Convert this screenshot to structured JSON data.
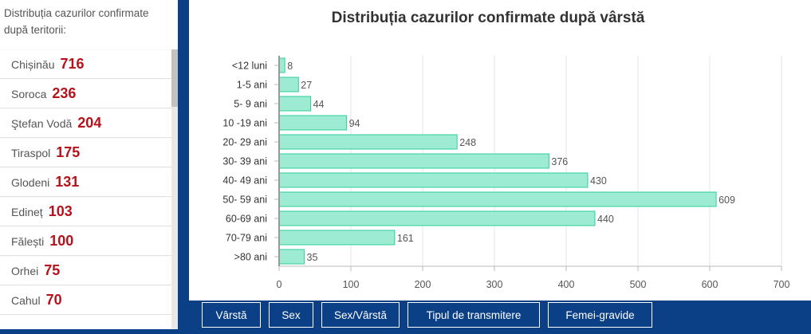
{
  "sidebar": {
    "title": "Distribuția cazurilor confirmate după teritorii:",
    "items": [
      {
        "name": "Chișinău",
        "count": "716"
      },
      {
        "name": "Soroca",
        "count": "236"
      },
      {
        "name": "Ştefan Vodă",
        "count": "204"
      },
      {
        "name": "Tiraspol",
        "count": "175"
      },
      {
        "name": "Glodeni",
        "count": "131"
      },
      {
        "name": "Edineț",
        "count": "103"
      },
      {
        "name": "Fălești",
        "count": "100"
      },
      {
        "name": "Orhei",
        "count": "75"
      },
      {
        "name": "Cahul",
        "count": "70"
      }
    ]
  },
  "tabs": [
    "Vârstă",
    "Sex",
    "Sex/Vârstă",
    "Tipul de transmitere",
    "Femei-gravide"
  ],
  "colors": {
    "bar_fill": "#9eebd4",
    "bar_stroke": "#2fcf9a",
    "accent": "#b5121b",
    "frame": "#0b3f86"
  },
  "chart_data": {
    "type": "bar",
    "orientation": "horizontal",
    "title": "Distribuția cazurilor confirmate după vârstă",
    "categories": [
      "<12 luni",
      "1-5 ani",
      "5- 9 ani",
      "10 -19 ani",
      "20- 29 ani",
      "30- 39 ani",
      "40- 49 ani",
      "50- 59 ani",
      "60-69 ani",
      "70-79 ani",
      ">80 ani"
    ],
    "values": [
      8,
      27,
      44,
      94,
      248,
      376,
      430,
      609,
      440,
      161,
      35
    ],
    "xlim": [
      0,
      700
    ],
    "xticks": [
      "0",
      "100",
      "200",
      "300",
      "400",
      "500",
      "600",
      "700"
    ],
    "grid": true,
    "data_labels": true
  }
}
